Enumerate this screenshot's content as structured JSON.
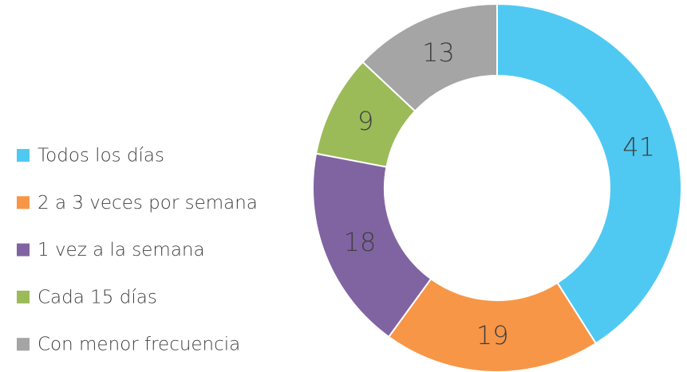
{
  "chart_data": {
    "type": "donut",
    "categories": [
      "Todos los días",
      "2  a 3 veces por semana",
      "1 vez a la semana",
      "Cada 15 días",
      "Con menor frecuencia"
    ],
    "values": [
      41,
      19,
      18,
      9,
      13
    ],
    "colors": [
      "#4fc9f2",
      "#f79646",
      "#8064a2",
      "#9bbb59",
      "#a5a5a5"
    ],
    "legend": "left"
  }
}
